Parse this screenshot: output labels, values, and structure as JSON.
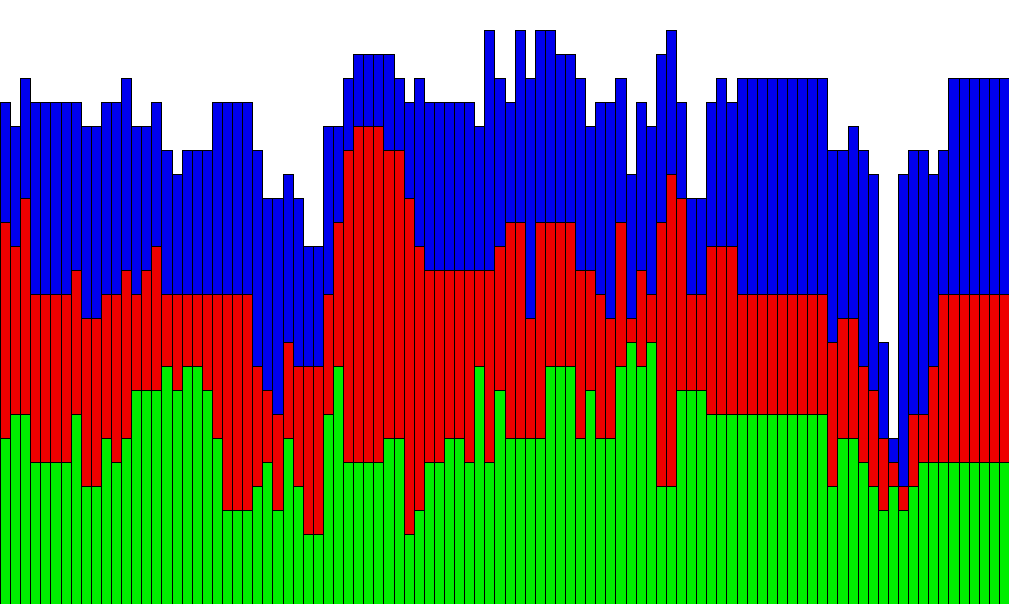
{
  "chart_data": {
    "type": "bar",
    "stacked": true,
    "grid": false,
    "legend": "none",
    "ylim": [
      0,
      604
    ],
    "categories_count": 100,
    "series": [
      {
        "color": "#00ee00",
        "values": [
          166,
          190,
          190,
          142,
          142,
          142,
          142,
          190,
          118,
          118,
          166,
          142,
          166,
          214,
          214,
          214,
          238,
          214,
          238,
          238,
          214,
          166,
          94,
          94,
          94,
          118,
          142,
          94,
          166,
          118,
          70,
          70,
          190,
          238,
          142,
          142,
          142,
          142,
          166,
          166,
          70,
          94,
          142,
          142,
          166,
          166,
          142,
          238,
          142,
          214,
          166,
          166,
          166,
          166,
          238,
          238,
          238,
          166,
          214,
          166,
          166,
          238,
          262,
          238,
          262,
          118,
          118,
          214,
          214,
          214,
          190,
          190,
          190,
          190,
          190,
          190,
          190,
          190,
          190,
          190,
          190,
          190,
          118,
          166,
          166,
          142,
          118,
          94,
          118,
          94,
          118,
          142,
          142,
          142,
          142,
          142,
          142,
          142,
          142,
          142
        ]
      },
      {
        "color": "#ee0000",
        "values": [
          216,
          168,
          216,
          168,
          168,
          168,
          168,
          144,
          168,
          168,
          144,
          168,
          168,
          96,
          120,
          144,
          72,
          96,
          72,
          72,
          96,
          144,
          216,
          216,
          216,
          120,
          72,
          96,
          96,
          120,
          168,
          168,
          120,
          144,
          312,
          336,
          336,
          336,
          288,
          288,
          336,
          264,
          192,
          192,
          168,
          168,
          192,
          96,
          192,
          144,
          216,
          216,
          120,
          216,
          144,
          144,
          144,
          168,
          120,
          144,
          120,
          144,
          24,
          96,
          48,
          264,
          312,
          192,
          96,
          96,
          168,
          168,
          168,
          120,
          120,
          120,
          120,
          120,
          120,
          120,
          120,
          120,
          144,
          120,
          120,
          96,
          96,
          72,
          24,
          24,
          72,
          48,
          96,
          168,
          168,
          168,
          168,
          168,
          168,
          168
        ]
      },
      {
        "color": "#0000ee",
        "values": [
          120,
          120,
          120,
          192,
          192,
          192,
          192,
          168,
          192,
          192,
          192,
          192,
          192,
          168,
          144,
          144,
          144,
          120,
          144,
          144,
          144,
          192,
          192,
          192,
          192,
          216,
          192,
          216,
          168,
          168,
          120,
          120,
          168,
          96,
          72,
          72,
          72,
          72,
          96,
          72,
          96,
          168,
          168,
          168,
          168,
          168,
          168,
          144,
          240,
          168,
          120,
          192,
          240,
          192,
          192,
          168,
          168,
          192,
          144,
          192,
          216,
          144,
          144,
          168,
          168,
          168,
          144,
          96,
          96,
          96,
          144,
          168,
          144,
          216,
          216,
          216,
          216,
          216,
          216,
          216,
          216,
          216,
          192,
          168,
          192,
          216,
          216,
          96,
          24,
          312,
          264,
          264,
          192,
          144,
          216,
          216,
          216,
          216,
          216,
          216
        ]
      }
    ]
  }
}
